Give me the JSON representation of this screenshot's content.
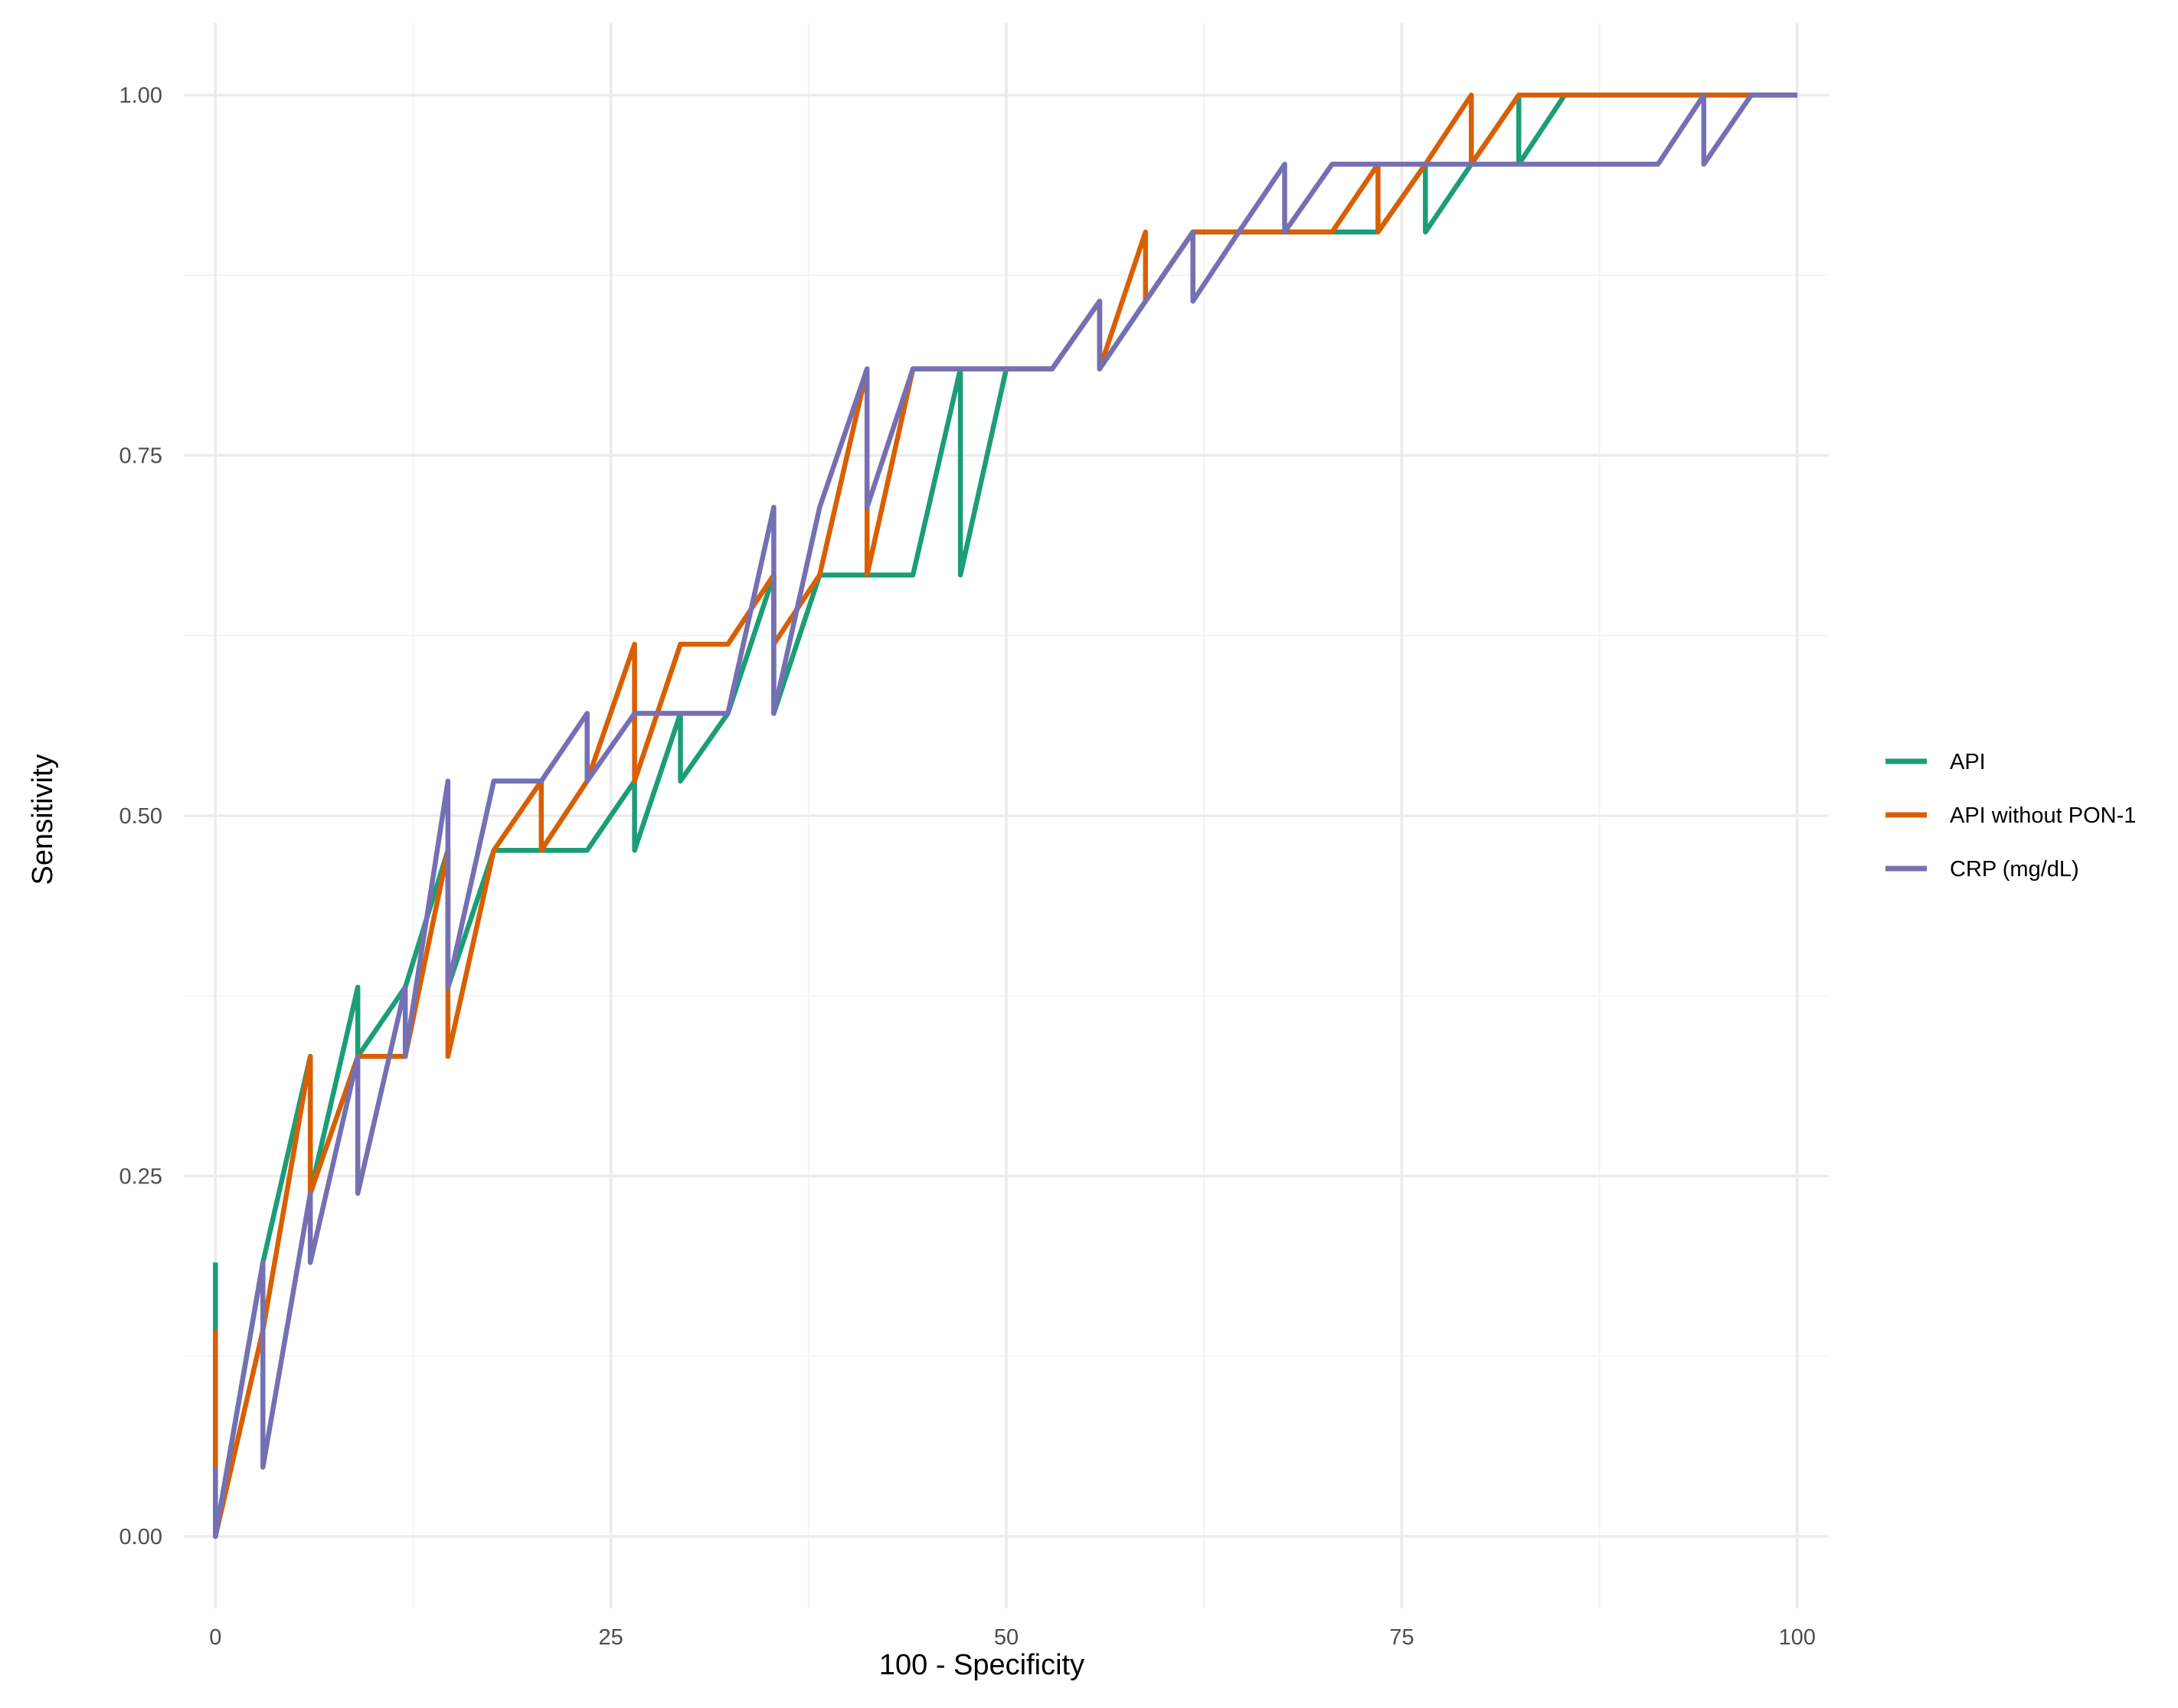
{
  "chart_data": {
    "type": "line",
    "xlabel": "100 - Specificity",
    "ylabel": "Sensitivity",
    "xlim": [
      -2,
      102
    ],
    "ylim": [
      -0.05,
      1.05
    ],
    "x_ticks": [
      0,
      25,
      50,
      75,
      100
    ],
    "x_tick_labels": [
      "0",
      "25",
      "50",
      "75",
      "100"
    ],
    "y_ticks": [
      0,
      0.25,
      0.5,
      0.75,
      1
    ],
    "y_tick_labels": [
      "0.00",
      "0.25",
      "0.50",
      "0.75",
      "1.00"
    ],
    "grid": true,
    "legend_position": "right",
    "series": [
      {
        "name": "API",
        "color": "#1b9e77",
        "points": [
          [
            0,
            0.19
          ],
          [
            0,
            0
          ],
          [
            3.0,
            0.19
          ],
          [
            6.0,
            0.333
          ],
          [
            6.0,
            0.238
          ],
          [
            9.0,
            0.381
          ],
          [
            9.0,
            0.333
          ],
          [
            12.0,
            0.381
          ],
          [
            14.7,
            0.476
          ],
          [
            14.7,
            0.381
          ],
          [
            17.6,
            0.476
          ],
          [
            20.6,
            0.476
          ],
          [
            23.5,
            0.476
          ],
          [
            26.5,
            0.524
          ],
          [
            26.5,
            0.476
          ],
          [
            29.4,
            0.571
          ],
          [
            29.4,
            0.524
          ],
          [
            32.4,
            0.571
          ],
          [
            35.3,
            0.667
          ],
          [
            35.3,
            0.571
          ],
          [
            38.2,
            0.667
          ],
          [
            41.2,
            0.667
          ],
          [
            44.1,
            0.667
          ],
          [
            47.1,
            0.81
          ],
          [
            47.1,
            0.667
          ],
          [
            50.0,
            0.81
          ],
          [
            52.9,
            0.81
          ],
          [
            55.9,
            0.857
          ],
          [
            55.9,
            0.81
          ],
          [
            58.8,
            0.857
          ],
          [
            61.8,
            0.905
          ],
          [
            64.7,
            0.905
          ],
          [
            67.6,
            0.905
          ],
          [
            70.6,
            0.905
          ],
          [
            73.5,
            0.905
          ],
          [
            76.5,
            0.952
          ],
          [
            76.5,
            0.905
          ],
          [
            79.4,
            0.952
          ],
          [
            82.4,
            1.0
          ],
          [
            82.4,
            0.952
          ],
          [
            85.3,
            1.0
          ],
          [
            88.2,
            1.0
          ],
          [
            91.2,
            1.0
          ],
          [
            94.1,
            1.0
          ],
          [
            97.1,
            1.0
          ],
          [
            100,
            1.0
          ]
        ]
      },
      {
        "name": "API without PON-1",
        "color": "#d95f02",
        "points": [
          [
            0,
            0.143
          ],
          [
            0,
            0
          ],
          [
            3.0,
            0.143
          ],
          [
            6.0,
            0.333
          ],
          [
            6.0,
            0.238
          ],
          [
            9.0,
            0.333
          ],
          [
            12.0,
            0.333
          ],
          [
            14.7,
            0.476
          ],
          [
            14.7,
            0.333
          ],
          [
            17.6,
            0.476
          ],
          [
            20.6,
            0.524
          ],
          [
            20.6,
            0.476
          ],
          [
            23.5,
            0.524
          ],
          [
            26.5,
            0.619
          ],
          [
            26.5,
            0.524
          ],
          [
            29.4,
            0.619
          ],
          [
            32.4,
            0.619
          ],
          [
            35.3,
            0.667
          ],
          [
            35.3,
            0.619
          ],
          [
            38.2,
            0.667
          ],
          [
            41.2,
            0.81
          ],
          [
            41.2,
            0.667
          ],
          [
            44.1,
            0.81
          ],
          [
            47.1,
            0.81
          ],
          [
            50.0,
            0.81
          ],
          [
            52.9,
            0.81
          ],
          [
            55.9,
            0.857
          ],
          [
            55.9,
            0.81
          ],
          [
            58.8,
            0.905
          ],
          [
            58.8,
            0.857
          ],
          [
            61.8,
            0.905
          ],
          [
            64.7,
            0.905
          ],
          [
            67.6,
            0.905
          ],
          [
            70.6,
            0.905
          ],
          [
            73.5,
            0.952
          ],
          [
            73.5,
            0.905
          ],
          [
            76.5,
            0.952
          ],
          [
            79.4,
            1.0
          ],
          [
            79.4,
            0.952
          ],
          [
            82.4,
            1.0
          ],
          [
            85.3,
            1.0
          ],
          [
            88.2,
            1.0
          ],
          [
            91.2,
            1.0
          ],
          [
            94.1,
            1.0
          ],
          [
            97.1,
            1.0
          ],
          [
            100,
            1.0
          ]
        ]
      },
      {
        "name": "CRP (mg/dL)",
        "color": "#7570b3",
        "points": [
          [
            0,
            0.048
          ],
          [
            0,
            0
          ],
          [
            3.0,
            0.19
          ],
          [
            3.0,
            0.048
          ],
          [
            6.0,
            0.238
          ],
          [
            6.0,
            0.19
          ],
          [
            9.0,
            0.333
          ],
          [
            9.0,
            0.238
          ],
          [
            12.0,
            0.381
          ],
          [
            12.0,
            0.333
          ],
          [
            14.7,
            0.524
          ],
          [
            14.7,
            0.381
          ],
          [
            17.6,
            0.524
          ],
          [
            20.6,
            0.524
          ],
          [
            23.5,
            0.571
          ],
          [
            23.5,
            0.524
          ],
          [
            26.5,
            0.571
          ],
          [
            29.4,
            0.571
          ],
          [
            32.4,
            0.571
          ],
          [
            35.3,
            0.714
          ],
          [
            35.3,
            0.571
          ],
          [
            38.2,
            0.714
          ],
          [
            41.2,
            0.81
          ],
          [
            41.2,
            0.714
          ],
          [
            44.1,
            0.81
          ],
          [
            47.1,
            0.81
          ],
          [
            50.0,
            0.81
          ],
          [
            52.9,
            0.81
          ],
          [
            55.9,
            0.857
          ],
          [
            55.9,
            0.81
          ],
          [
            58.8,
            0.857
          ],
          [
            61.8,
            0.905
          ],
          [
            61.8,
            0.857
          ],
          [
            64.7,
            0.905
          ],
          [
            67.6,
            0.952
          ],
          [
            67.6,
            0.905
          ],
          [
            70.6,
            0.952
          ],
          [
            73.5,
            0.952
          ],
          [
            76.5,
            0.952
          ],
          [
            79.4,
            0.952
          ],
          [
            82.4,
            0.952
          ],
          [
            85.3,
            0.952
          ],
          [
            88.2,
            0.952
          ],
          [
            91.2,
            0.952
          ],
          [
            94.1,
            1.0
          ],
          [
            94.1,
            0.952
          ],
          [
            97.1,
            1.0
          ],
          [
            100,
            1.0
          ]
        ]
      }
    ]
  }
}
